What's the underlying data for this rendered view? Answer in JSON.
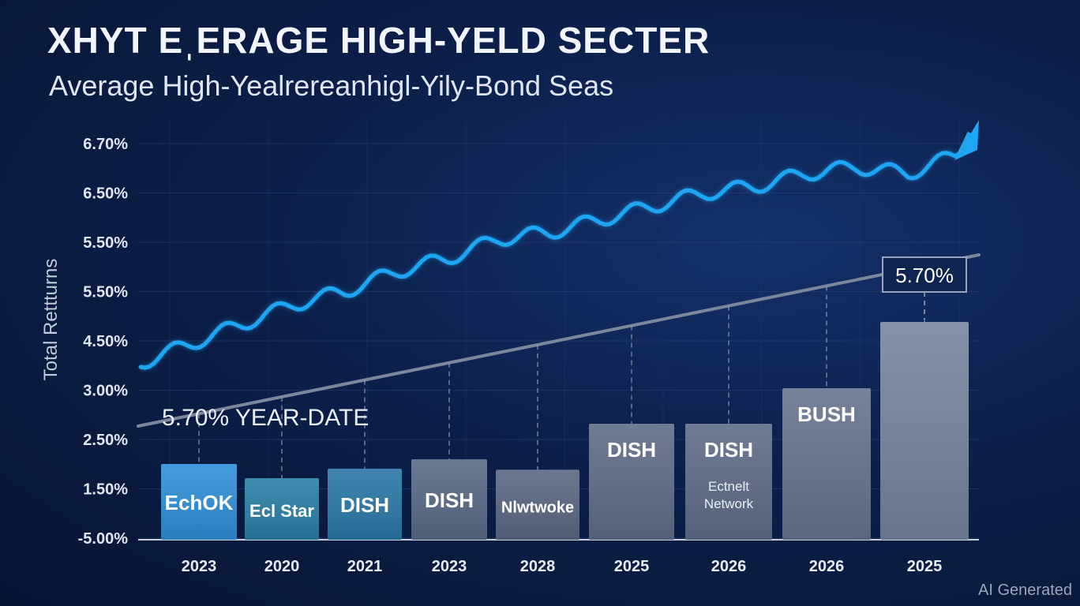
{
  "chart_data": {
    "type": "bar",
    "title": "XHYT EˌERAGE HIGH-YELD SECTER",
    "subtitle": "Average High-Yealrereanhigl-Yily-Bond Seas",
    "ylabel": "Total Rettturns",
    "y_ticks": [
      "6.70%",
      "6.50%",
      "5.50%",
      "5.50%",
      "4.50%",
      "3.00%",
      "2.50%",
      "1.50%",
      "-5.00%"
    ],
    "categories": [
      "2023",
      "2020",
      "2021",
      "2023",
      "2028",
      "2025",
      "2026",
      "2026",
      "2025"
    ],
    "bars": [
      {
        "label": "EchOK",
        "sublabel": "",
        "value": 1.6,
        "color": "#2f8fd8"
      },
      {
        "label": "Ecl Star",
        "sublabel": "",
        "value": 1.3,
        "color": "#2a7fa6"
      },
      {
        "label": "DISH",
        "sublabel": "",
        "value": 1.5,
        "color": "#2b78a8"
      },
      {
        "label": "DISH",
        "sublabel": "",
        "value": 1.7,
        "color": "#5a6a86"
      },
      {
        "label": "Nlwtwoke",
        "sublabel": "",
        "value": 1.48,
        "color": "#5b6882"
      },
      {
        "label": "DISH",
        "sublabel": "",
        "value": 2.45,
        "color": "#5f6d88"
      },
      {
        "label": "DISH",
        "sublabel": "Ectnelt\nNetwork",
        "value": 2.45,
        "color": "#5f6d88"
      },
      {
        "label": "BUSH",
        "sublabel": "",
        "value": 3.2,
        "color": "#66748f"
      },
      {
        "label": "",
        "sublabel": "",
        "value": 4.6,
        "color": "#7784a0"
      }
    ],
    "line_series": {
      "name": "",
      "color": "#1ea6f2",
      "values": [
        4.0,
        4.3,
        4.6,
        4.9,
        5.1,
        5.4,
        5.6,
        5.9,
        6.0,
        6.2,
        6.4,
        6.6,
        6.7,
        6.9,
        7.0,
        6.9,
        7.2
      ]
    },
    "trend_line": {
      "start": 2.5,
      "end": 6.2,
      "color": "#7d879b"
    },
    "annotations": {
      "ytd": "5.70% YEAR-DATE",
      "box": "5.70%"
    },
    "grid": true
  },
  "footer": {
    "watermark": "AI Generated"
  }
}
